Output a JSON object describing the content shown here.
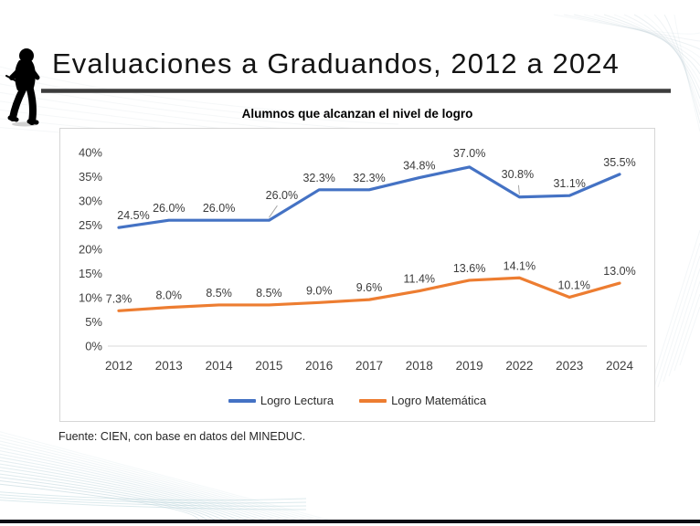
{
  "slide": {
    "title": "Evaluaciones a Graduandos, 2012 a 2024",
    "footer": "Fuente: CIEN, con base en datos del MINEDUC.",
    "logo": "running-child-silhouette",
    "accent_bar_color": "#0c0c14"
  },
  "chart_data": {
    "type": "line",
    "title": "Alumnos que alcanzan el nivel de logro",
    "categories": [
      "2012",
      "2013",
      "2014",
      "2015",
      "2016",
      "2017",
      "2018",
      "2019",
      "2022",
      "2023",
      "2024"
    ],
    "series": [
      {
        "name": "Logro Lectura",
        "color": "#4472C4",
        "values": [
          24.5,
          26.0,
          26.0,
          26.0,
          32.3,
          32.3,
          34.8,
          37.0,
          30.8,
          31.1,
          35.5
        ]
      },
      {
        "name": "Logro Matemática",
        "color": "#ED7D31",
        "values": [
          7.3,
          8.0,
          8.5,
          8.5,
          9.0,
          9.6,
          11.4,
          13.6,
          14.1,
          10.1,
          13.0
        ]
      }
    ],
    "y_axis": {
      "min": 0,
      "max": 40,
      "step": 5,
      "tick_labels": [
        "0%",
        "5%",
        "10%",
        "15%",
        "20%",
        "25%",
        "30%",
        "35%",
        "40%"
      ]
    },
    "data_label_format": "one-decimal-percent",
    "legend_position": "bottom",
    "grid": false,
    "axis_line_color": "#d9d9d9",
    "text_color": "#404040"
  }
}
